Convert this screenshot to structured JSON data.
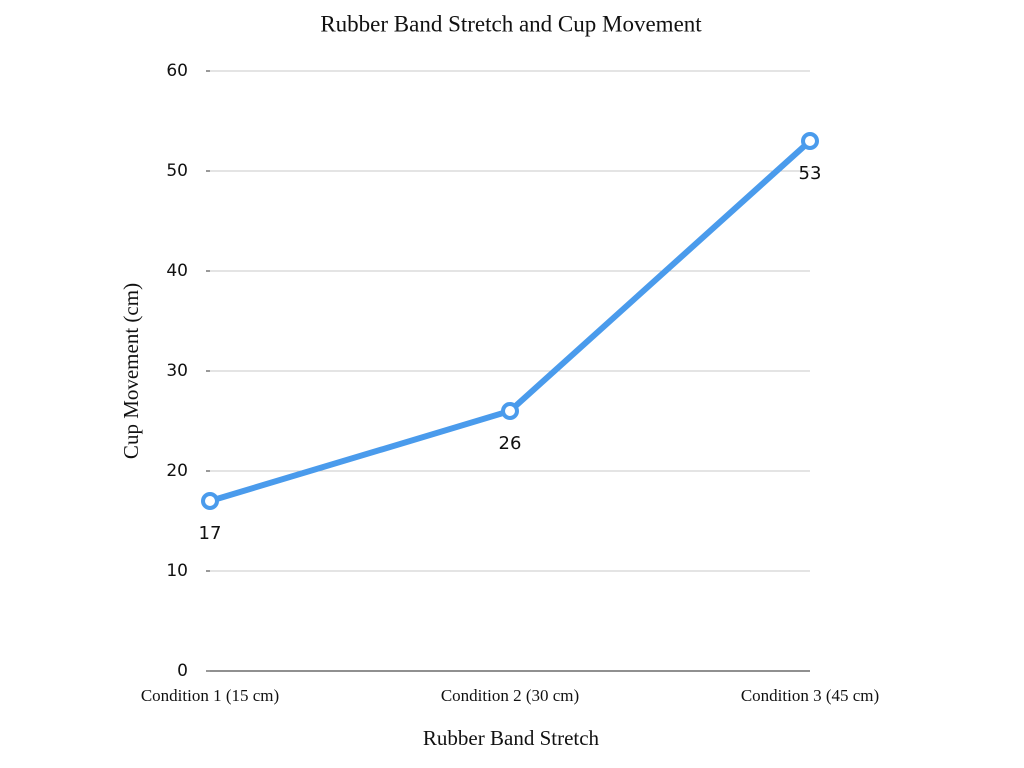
{
  "chart_data": {
    "type": "line",
    "title": "Rubber Band Stretch and Cup Movement",
    "x_label": "Rubber Band Stretch",
    "y_label": "Cup Movement (cm)",
    "categories": [
      "Condition 1 (15 cm)",
      "Condition 2 (30 cm)",
      "Condition 3 (45 cm)"
    ],
    "values": [
      17,
      26,
      53
    ],
    "color": "#4a9bec",
    "ylim": [
      0,
      60
    ],
    "yticks": [
      0,
      10,
      20,
      30,
      40,
      50,
      60
    ],
    "grid": true
  }
}
